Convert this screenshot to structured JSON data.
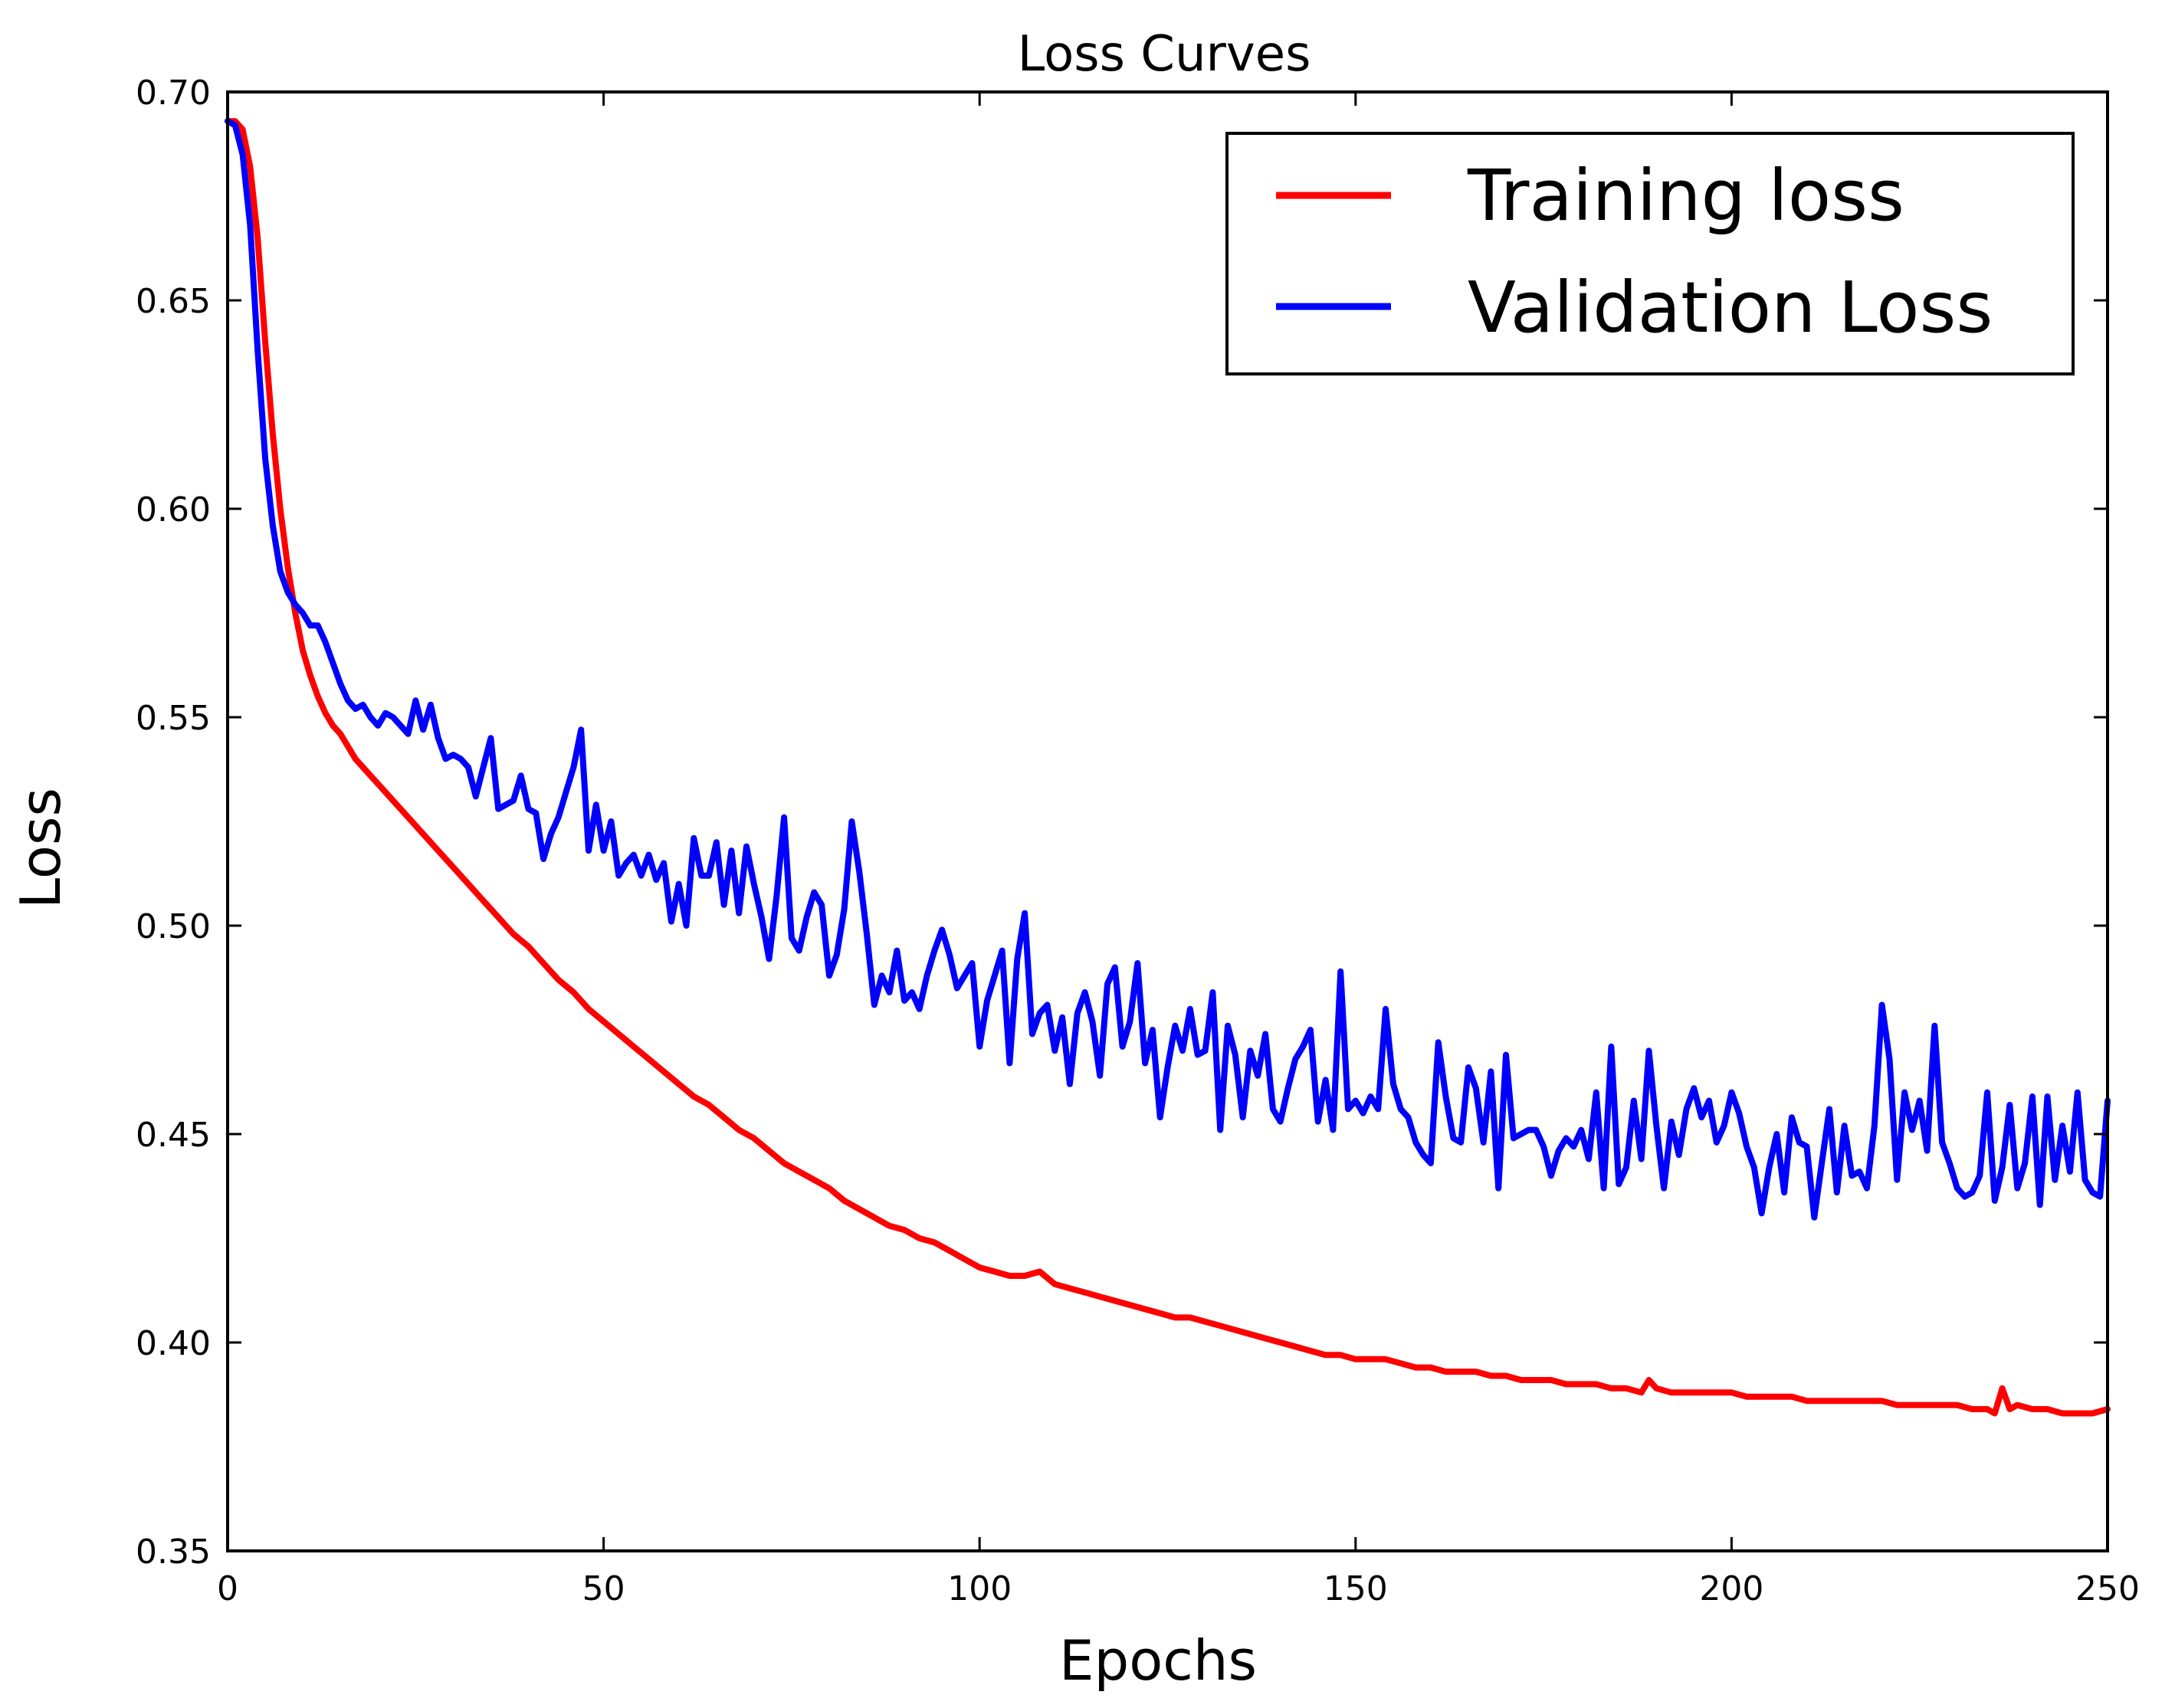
{
  "chart_data": {
    "type": "line",
    "title": "Loss Curves",
    "xlabel": "Epochs",
    "ylabel": "Loss",
    "xlim": [
      0,
      250
    ],
    "ylim": [
      0.35,
      0.7
    ],
    "xticks": [
      0,
      50,
      100,
      150,
      200,
      250
    ],
    "xtick_labels": [
      "0",
      "50",
      "100",
      "150",
      "200",
      "250"
    ],
    "yticks": [
      0.35,
      0.4,
      0.45,
      0.5,
      0.55,
      0.6,
      0.65,
      0.7
    ],
    "ytick_labels": [
      "0.35",
      "0.40",
      "0.45",
      "0.50",
      "0.55",
      "0.60",
      "0.65",
      "0.70"
    ],
    "grid": false,
    "legend_position": "top-right",
    "series": [
      {
        "name": "Training loss",
        "color": "#ff0000",
        "x": [
          0,
          1,
          2,
          3,
          4,
          5,
          6,
          7,
          8,
          9,
          10,
          11,
          12,
          13,
          14,
          15,
          16,
          17,
          18,
          20,
          22,
          24,
          26,
          28,
          30,
          32,
          34,
          36,
          38,
          40,
          42,
          44,
          46,
          48,
          50,
          52,
          54,
          56,
          58,
          60,
          62,
          64,
          66,
          68,
          70,
          72,
          74,
          76,
          78,
          80,
          82,
          84,
          86,
          88,
          90,
          92,
          94,
          96,
          98,
          100,
          102,
          104,
          106,
          108,
          110,
          112,
          114,
          116,
          118,
          120,
          122,
          124,
          126,
          128,
          130,
          132,
          134,
          136,
          138,
          140,
          142,
          144,
          146,
          148,
          150,
          152,
          154,
          156,
          158,
          160,
          162,
          164,
          166,
          168,
          170,
          172,
          174,
          176,
          178,
          180,
          182,
          184,
          186,
          188,
          189,
          190,
          192,
          194,
          196,
          198,
          200,
          202,
          204,
          206,
          208,
          210,
          212,
          214,
          216,
          218,
          220,
          222,
          224,
          226,
          228,
          230,
          232,
          234,
          235,
          236,
          237,
          238,
          240,
          242,
          244,
          246,
          248,
          250
        ],
        "values": [
          0.693,
          0.693,
          0.691,
          0.682,
          0.665,
          0.64,
          0.618,
          0.6,
          0.586,
          0.575,
          0.566,
          0.56,
          0.555,
          0.551,
          0.548,
          0.546,
          0.543,
          0.54,
          0.538,
          0.534,
          0.53,
          0.526,
          0.522,
          0.518,
          0.514,
          0.51,
          0.506,
          0.502,
          0.498,
          0.495,
          0.491,
          0.487,
          0.484,
          0.48,
          0.477,
          0.474,
          0.471,
          0.468,
          0.465,
          0.462,
          0.459,
          0.457,
          0.454,
          0.451,
          0.449,
          0.446,
          0.443,
          0.441,
          0.439,
          0.437,
          0.434,
          0.432,
          0.43,
          0.428,
          0.427,
          0.425,
          0.424,
          0.422,
          0.42,
          0.418,
          0.417,
          0.416,
          0.416,
          0.417,
          0.414,
          0.413,
          0.412,
          0.411,
          0.41,
          0.409,
          0.408,
          0.407,
          0.406,
          0.406,
          0.405,
          0.404,
          0.403,
          0.402,
          0.401,
          0.4,
          0.399,
          0.398,
          0.397,
          0.397,
          0.396,
          0.396,
          0.396,
          0.395,
          0.394,
          0.394,
          0.393,
          0.393,
          0.393,
          0.392,
          0.392,
          0.391,
          0.391,
          0.391,
          0.39,
          0.39,
          0.39,
          0.389,
          0.389,
          0.388,
          0.391,
          0.389,
          0.388,
          0.388,
          0.388,
          0.388,
          0.388,
          0.387,
          0.387,
          0.387,
          0.387,
          0.386,
          0.386,
          0.386,
          0.386,
          0.386,
          0.386,
          0.385,
          0.385,
          0.385,
          0.385,
          0.385,
          0.384,
          0.384,
          0.383,
          0.389,
          0.384,
          0.385,
          0.384,
          0.384,
          0.383,
          0.383,
          0.383,
          0.384
        ]
      },
      {
        "name": "Validation Loss",
        "color": "#0000ff",
        "x": [
          0,
          1,
          2,
          3,
          4,
          5,
          6,
          7,
          8,
          9,
          10,
          11,
          12,
          13,
          14,
          15,
          16,
          17,
          18,
          19,
          20,
          21,
          22,
          23,
          24,
          25,
          26,
          27,
          28,
          29,
          30,
          31,
          32,
          33,
          34,
          35,
          36,
          37,
          38,
          39,
          40,
          41,
          42,
          43,
          44,
          45,
          46,
          47,
          48,
          49,
          50,
          51,
          52,
          53,
          54,
          55,
          56,
          57,
          58,
          59,
          60,
          61,
          62,
          63,
          64,
          65,
          66,
          67,
          68,
          69,
          70,
          71,
          72,
          73,
          74,
          75,
          76,
          77,
          78,
          79,
          80,
          81,
          82,
          83,
          84,
          85,
          86,
          87,
          88,
          89,
          90,
          91,
          92,
          93,
          94,
          95,
          96,
          97,
          98,
          99,
          100,
          101,
          102,
          103,
          104,
          105,
          106,
          107,
          108,
          109,
          110,
          111,
          112,
          113,
          114,
          115,
          116,
          117,
          118,
          119,
          120,
          121,
          122,
          123,
          124,
          125,
          126,
          127,
          128,
          129,
          130,
          131,
          132,
          133,
          134,
          135,
          136,
          137,
          138,
          139,
          140,
          141,
          142,
          143,
          144,
          145,
          146,
          147,
          148,
          149,
          150,
          151,
          152,
          153,
          154,
          155,
          156,
          157,
          158,
          159,
          160,
          161,
          162,
          163,
          164,
          165,
          166,
          167,
          168,
          169,
          170,
          171,
          172,
          173,
          174,
          175,
          176,
          177,
          178,
          179,
          180,
          181,
          182,
          183,
          184,
          185,
          186,
          187,
          188,
          189,
          190,
          191,
          192,
          193,
          194,
          195,
          196,
          197,
          198,
          199,
          200,
          201,
          202,
          203,
          204,
          205,
          206,
          207,
          208,
          209,
          210,
          211,
          212,
          213,
          214,
          215,
          216,
          217,
          218,
          219,
          220,
          221,
          222,
          223,
          224,
          225,
          226,
          227,
          228,
          229,
          230,
          231,
          232,
          233,
          234,
          235,
          236,
          237,
          238,
          239,
          240,
          241,
          242,
          243,
          244,
          245,
          246,
          247,
          248,
          249,
          250
        ],
        "values": [
          0.693,
          0.692,
          0.685,
          0.668,
          0.638,
          0.612,
          0.596,
          0.585,
          0.58,
          0.577,
          0.575,
          0.572,
          0.572,
          0.568,
          0.563,
          0.558,
          0.554,
          0.552,
          0.553,
          0.55,
          0.548,
          0.551,
          0.55,
          0.548,
          0.546,
          0.554,
          0.547,
          0.553,
          0.545,
          0.54,
          0.541,
          0.54,
          0.538,
          0.531,
          0.538,
          0.545,
          0.528,
          0.529,
          0.53,
          0.536,
          0.528,
          0.527,
          0.516,
          0.522,
          0.526,
          0.532,
          0.538,
          0.547,
          0.518,
          0.529,
          0.518,
          0.525,
          0.512,
          0.515,
          0.517,
          0.512,
          0.517,
          0.511,
          0.515,
          0.501,
          0.51,
          0.5,
          0.521,
          0.512,
          0.512,
          0.52,
          0.505,
          0.518,
          0.503,
          0.519,
          0.51,
          0.502,
          0.492,
          0.507,
          0.526,
          0.497,
          0.494,
          0.502,
          0.508,
          0.505,
          0.488,
          0.493,
          0.504,
          0.525,
          0.513,
          0.498,
          0.481,
          0.488,
          0.484,
          0.494,
          0.482,
          0.484,
          0.48,
          0.488,
          0.494,
          0.499,
          0.493,
          0.485,
          0.488,
          0.491,
          0.471,
          0.482,
          0.488,
          0.494,
          0.467,
          0.492,
          0.503,
          0.474,
          0.479,
          0.481,
          0.47,
          0.478,
          0.462,
          0.479,
          0.484,
          0.477,
          0.464,
          0.486,
          0.49,
          0.471,
          0.477,
          0.491,
          0.467,
          0.475,
          0.454,
          0.466,
          0.476,
          0.47,
          0.48,
          0.469,
          0.47,
          0.484,
          0.451,
          0.476,
          0.469,
          0.454,
          0.47,
          0.464,
          0.474,
          0.456,
          0.453,
          0.461,
          0.468,
          0.471,
          0.475,
          0.453,
          0.463,
          0.451,
          0.489,
          0.456,
          0.458,
          0.455,
          0.459,
          0.456,
          0.48,
          0.462,
          0.456,
          0.454,
          0.448,
          0.445,
          0.443,
          0.472,
          0.459,
          0.449,
          0.448,
          0.466,
          0.461,
          0.448,
          0.465,
          0.437,
          0.469,
          0.449,
          0.45,
          0.451,
          0.451,
          0.447,
          0.44,
          0.446,
          0.449,
          0.447,
          0.451,
          0.444,
          0.46,
          0.437,
          0.471,
          0.438,
          0.442,
          0.458,
          0.444,
          0.47,
          0.452,
          0.437,
          0.453,
          0.445,
          0.456,
          0.461,
          0.454,
          0.458,
          0.448,
          0.452,
          0.46,
          0.455,
          0.447,
          0.442,
          0.431,
          0.442,
          0.45,
          0.436,
          0.454,
          0.448,
          0.447,
          0.43,
          0.443,
          0.456,
          0.436,
          0.452,
          0.44,
          0.441,
          0.437,
          0.452,
          0.481,
          0.468,
          0.439,
          0.46,
          0.451,
          0.458,
          0.446,
          0.476,
          0.448,
          0.443,
          0.437,
          0.435,
          0.436,
          0.44,
          0.46,
          0.434,
          0.442,
          0.457,
          0.437,
          0.443,
          0.459,
          0.433,
          0.459,
          0.439,
          0.452,
          0.441,
          0.46,
          0.439,
          0.436,
          0.435,
          0.458
        ]
      }
    ]
  }
}
